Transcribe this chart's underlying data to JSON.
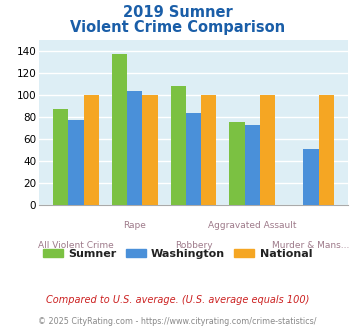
{
  "title_line1": "2019 Sumner",
  "title_line2": "Violent Crime Comparison",
  "categories": [
    "All Violent Crime",
    "Rape",
    "Robbery",
    "Aggravated Assault",
    "Murder & Mans..."
  ],
  "sumner": [
    87,
    137,
    108,
    75,
    0
  ],
  "washington": [
    77,
    103,
    83,
    72,
    51
  ],
  "national": [
    100,
    100,
    100,
    100,
    100
  ],
  "colors": {
    "sumner": "#7bc142",
    "washington": "#4a90d9",
    "national": "#f5a623"
  },
  "ylim": [
    0,
    150
  ],
  "yticks": [
    0,
    20,
    40,
    60,
    80,
    100,
    120,
    140
  ],
  "background_color": "#ddeef5",
  "grid_color": "#ffffff",
  "title_color": "#1a5ea8",
  "xlabel_color_upper": "#9e7a8a",
  "xlabel_color_lower": "#9e7a8a",
  "legend_label_color": "#222222",
  "footnote1": "Compared to U.S. average. (U.S. average equals 100)",
  "footnote2": "© 2025 CityRating.com - https://www.cityrating.com/crime-statistics/",
  "footnote1_color": "#cc2222",
  "footnote2_color": "#888888"
}
